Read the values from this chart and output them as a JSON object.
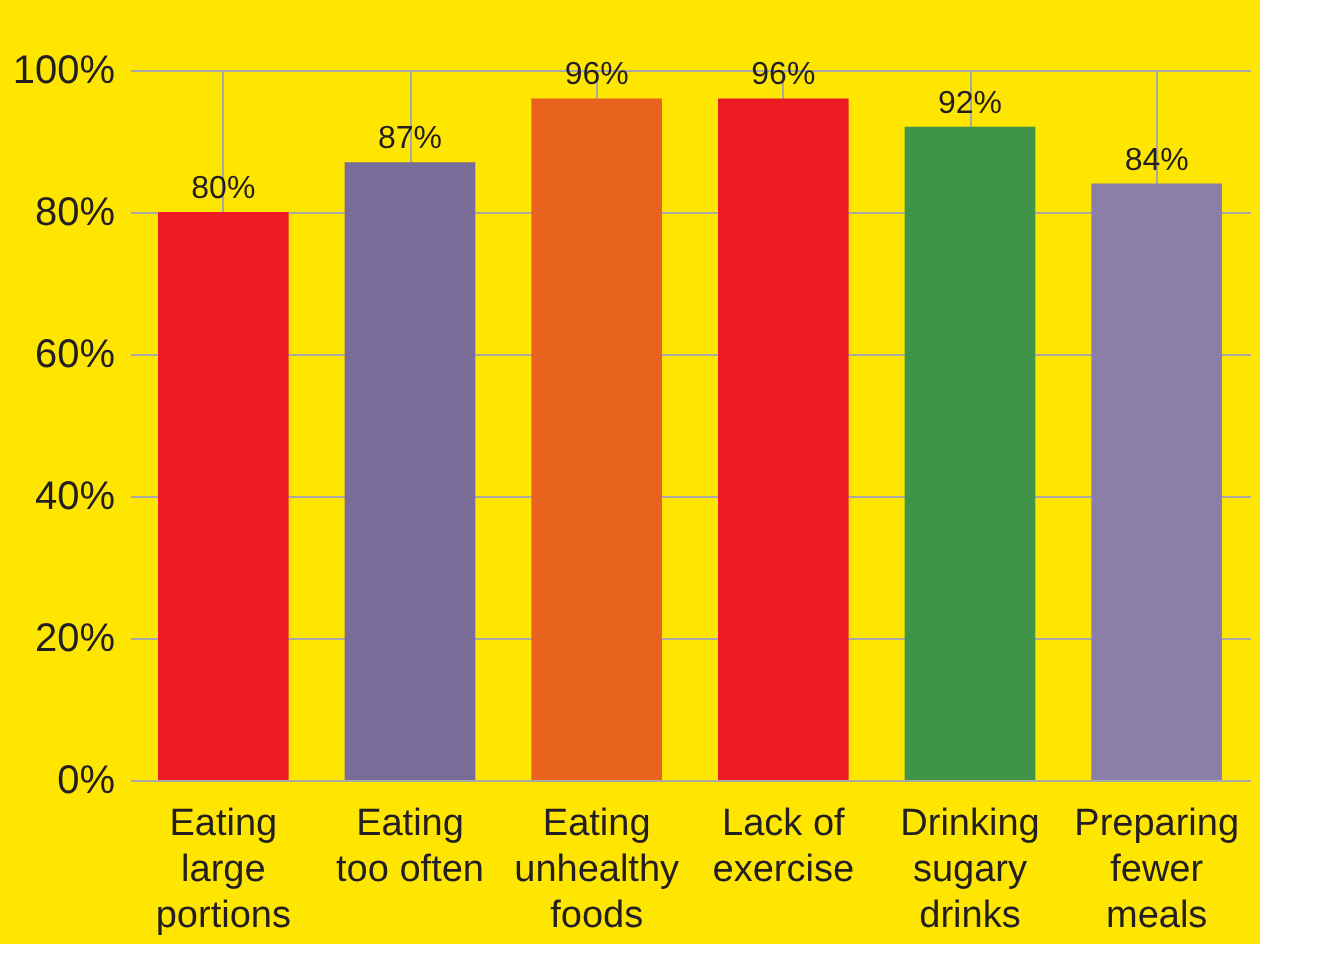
{
  "chart_data": {
    "type": "bar",
    "categories": [
      "Eating\nlarge\nportions",
      "Eating\ntoo often",
      "Eating\nunhealthy\nfoods",
      "Lack of\nexercise",
      "Drinking\nsugary\ndrinks",
      "Preparing\nfewer\nmeals"
    ],
    "values": [
      80,
      87,
      96,
      96,
      92,
      84
    ],
    "value_labels": [
      "80%",
      "87%",
      "96%",
      "96%",
      "92%",
      "84%"
    ],
    "colors": [
      "#ed1c24",
      "#786c98",
      "#e8641e",
      "#ed1c24",
      "#3f9447",
      "#8a7fa6"
    ],
    "ylim": [
      0,
      100
    ],
    "yticks": [
      {
        "value": 0,
        "label": "0%"
      },
      {
        "value": 20,
        "label": "20%"
      },
      {
        "value": 40,
        "label": "40%"
      },
      {
        "value": 60,
        "label": "60%"
      },
      {
        "value": 80,
        "label": "80%"
      },
      {
        "value": 100,
        "label": "100%"
      }
    ],
    "grid": true
  }
}
